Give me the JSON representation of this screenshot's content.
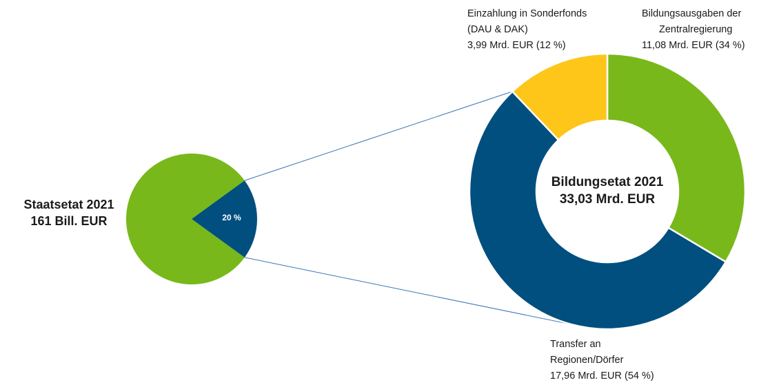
{
  "colors": {
    "green": "#78b81a",
    "blue": "#004f7e",
    "yellow": "#fdc618",
    "connector": "#3a75b8"
  },
  "overall": {
    "title": "Staatsetat 2021",
    "total": "161 Bill. EUR",
    "share_label": "20 %"
  },
  "education": {
    "title": "Bildungsetat 2021",
    "total": "33,03 Mrd. EUR"
  },
  "chart_data": [
    {
      "type": "pie",
      "title": "Staatsetat 2021",
      "subtitle": "161 Bill. EUR",
      "slices": [
        {
          "label": "",
          "value": 80,
          "color": "#78b81a"
        },
        {
          "label": "20 %",
          "value": 20,
          "color": "#004f7e"
        }
      ]
    },
    {
      "type": "pie",
      "title": "Bildungsetat 2021",
      "subtitle": "33,03 Mrd. EUR",
      "unit": "Mrd. EUR",
      "slices": [
        {
          "label": "Bildungsausgaben der Zentralregierung",
          "value": 11.08,
          "percent": 34,
          "color": "#78b81a",
          "text": [
            "Bildungsausgaben der",
            "Zentralregierung",
            "11,08 Mrd. EUR (34 %)"
          ]
        },
        {
          "label": "Transfer an Regionen/Dörfer",
          "value": 17.96,
          "percent": 54,
          "color": "#004f7e",
          "text": [
            "Transfer an",
            "Regionen/Dörfer",
            "17,96 Mrd. EUR (54 %)"
          ]
        },
        {
          "label": "Einzahlung in Sonderfonds (DAU & DAK)",
          "value": 3.99,
          "percent": 12,
          "color": "#fdc618",
          "text": [
            "Einzahlung in Sonderfonds",
            "(DAU & DAK)",
            "3,99 Mrd. EUR (12 %)"
          ]
        }
      ]
    }
  ]
}
